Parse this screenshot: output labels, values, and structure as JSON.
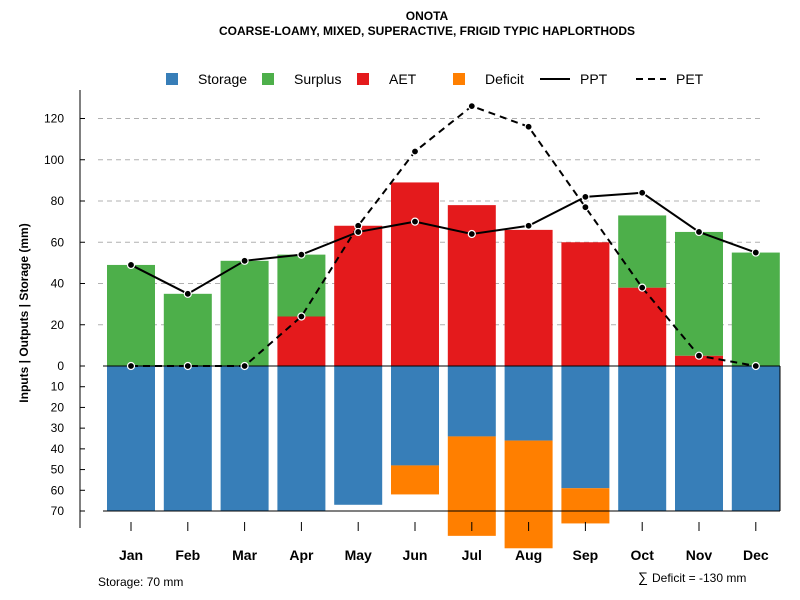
{
  "chart_data": {
    "type": "bar",
    "title": "ONOTA",
    "subtitle": "COARSE-LOAMY, MIXED, SUPERACTIVE, FRIGID TYPIC HAPLORTHODS",
    "ylabel": "Inputs | Outputs | Storage     (mm)",
    "categories": [
      "Jan",
      "Feb",
      "Mar",
      "Apr",
      "May",
      "Jun",
      "Jul",
      "Aug",
      "Sep",
      "Oct",
      "Nov",
      "Dec"
    ],
    "upper_ylim": [
      0,
      130
    ],
    "upper_ticks": [
      "0",
      "20",
      "40",
      "60",
      "80",
      "100",
      "120"
    ],
    "upper_tick_values": [
      0,
      20,
      40,
      60,
      80,
      100,
      120
    ],
    "lower_ylim": [
      0,
      70
    ],
    "lower_ticks": [
      "10",
      "20",
      "30",
      "40",
      "50",
      "60",
      "70"
    ],
    "lower_tick_values": [
      10,
      20,
      30,
      40,
      50,
      60,
      70
    ],
    "series": [
      {
        "name": "Storage",
        "color": "#377EB8",
        "values": [
          70,
          70,
          70,
          70,
          67,
          48,
          34,
          36,
          59,
          70,
          70,
          70
        ]
      },
      {
        "name": "Surplus",
        "color": "#4DAF4A",
        "values": [
          49,
          35,
          51,
          30,
          0,
          0,
          0,
          0,
          0,
          35,
          60,
          55
        ]
      },
      {
        "name": "AET",
        "color": "#E41A1C",
        "values": [
          0,
          0,
          0,
          24,
          68,
          89,
          78,
          66,
          60,
          38,
          5,
          0
        ]
      },
      {
        "name": "Deficit",
        "color": "#FF7F00",
        "values": [
          0,
          0,
          0,
          0,
          0,
          14,
          48,
          52,
          17,
          0,
          0,
          0
        ]
      },
      {
        "name": "PPT",
        "style": "solid",
        "values": [
          49,
          35,
          51,
          54,
          65,
          70,
          64,
          68,
          82,
          84,
          65,
          55
        ]
      },
      {
        "name": "PET",
        "style": "dashed",
        "values": [
          0,
          0,
          0,
          24,
          68,
          104,
          126,
          116,
          77,
          38,
          5,
          0
        ]
      }
    ],
    "legend_position": "top",
    "grid": true
  },
  "notes": {
    "storage": "Storage: 70 mm",
    "deficit_symbol": "∑",
    "deficit": "Deficit = -130 mm"
  }
}
